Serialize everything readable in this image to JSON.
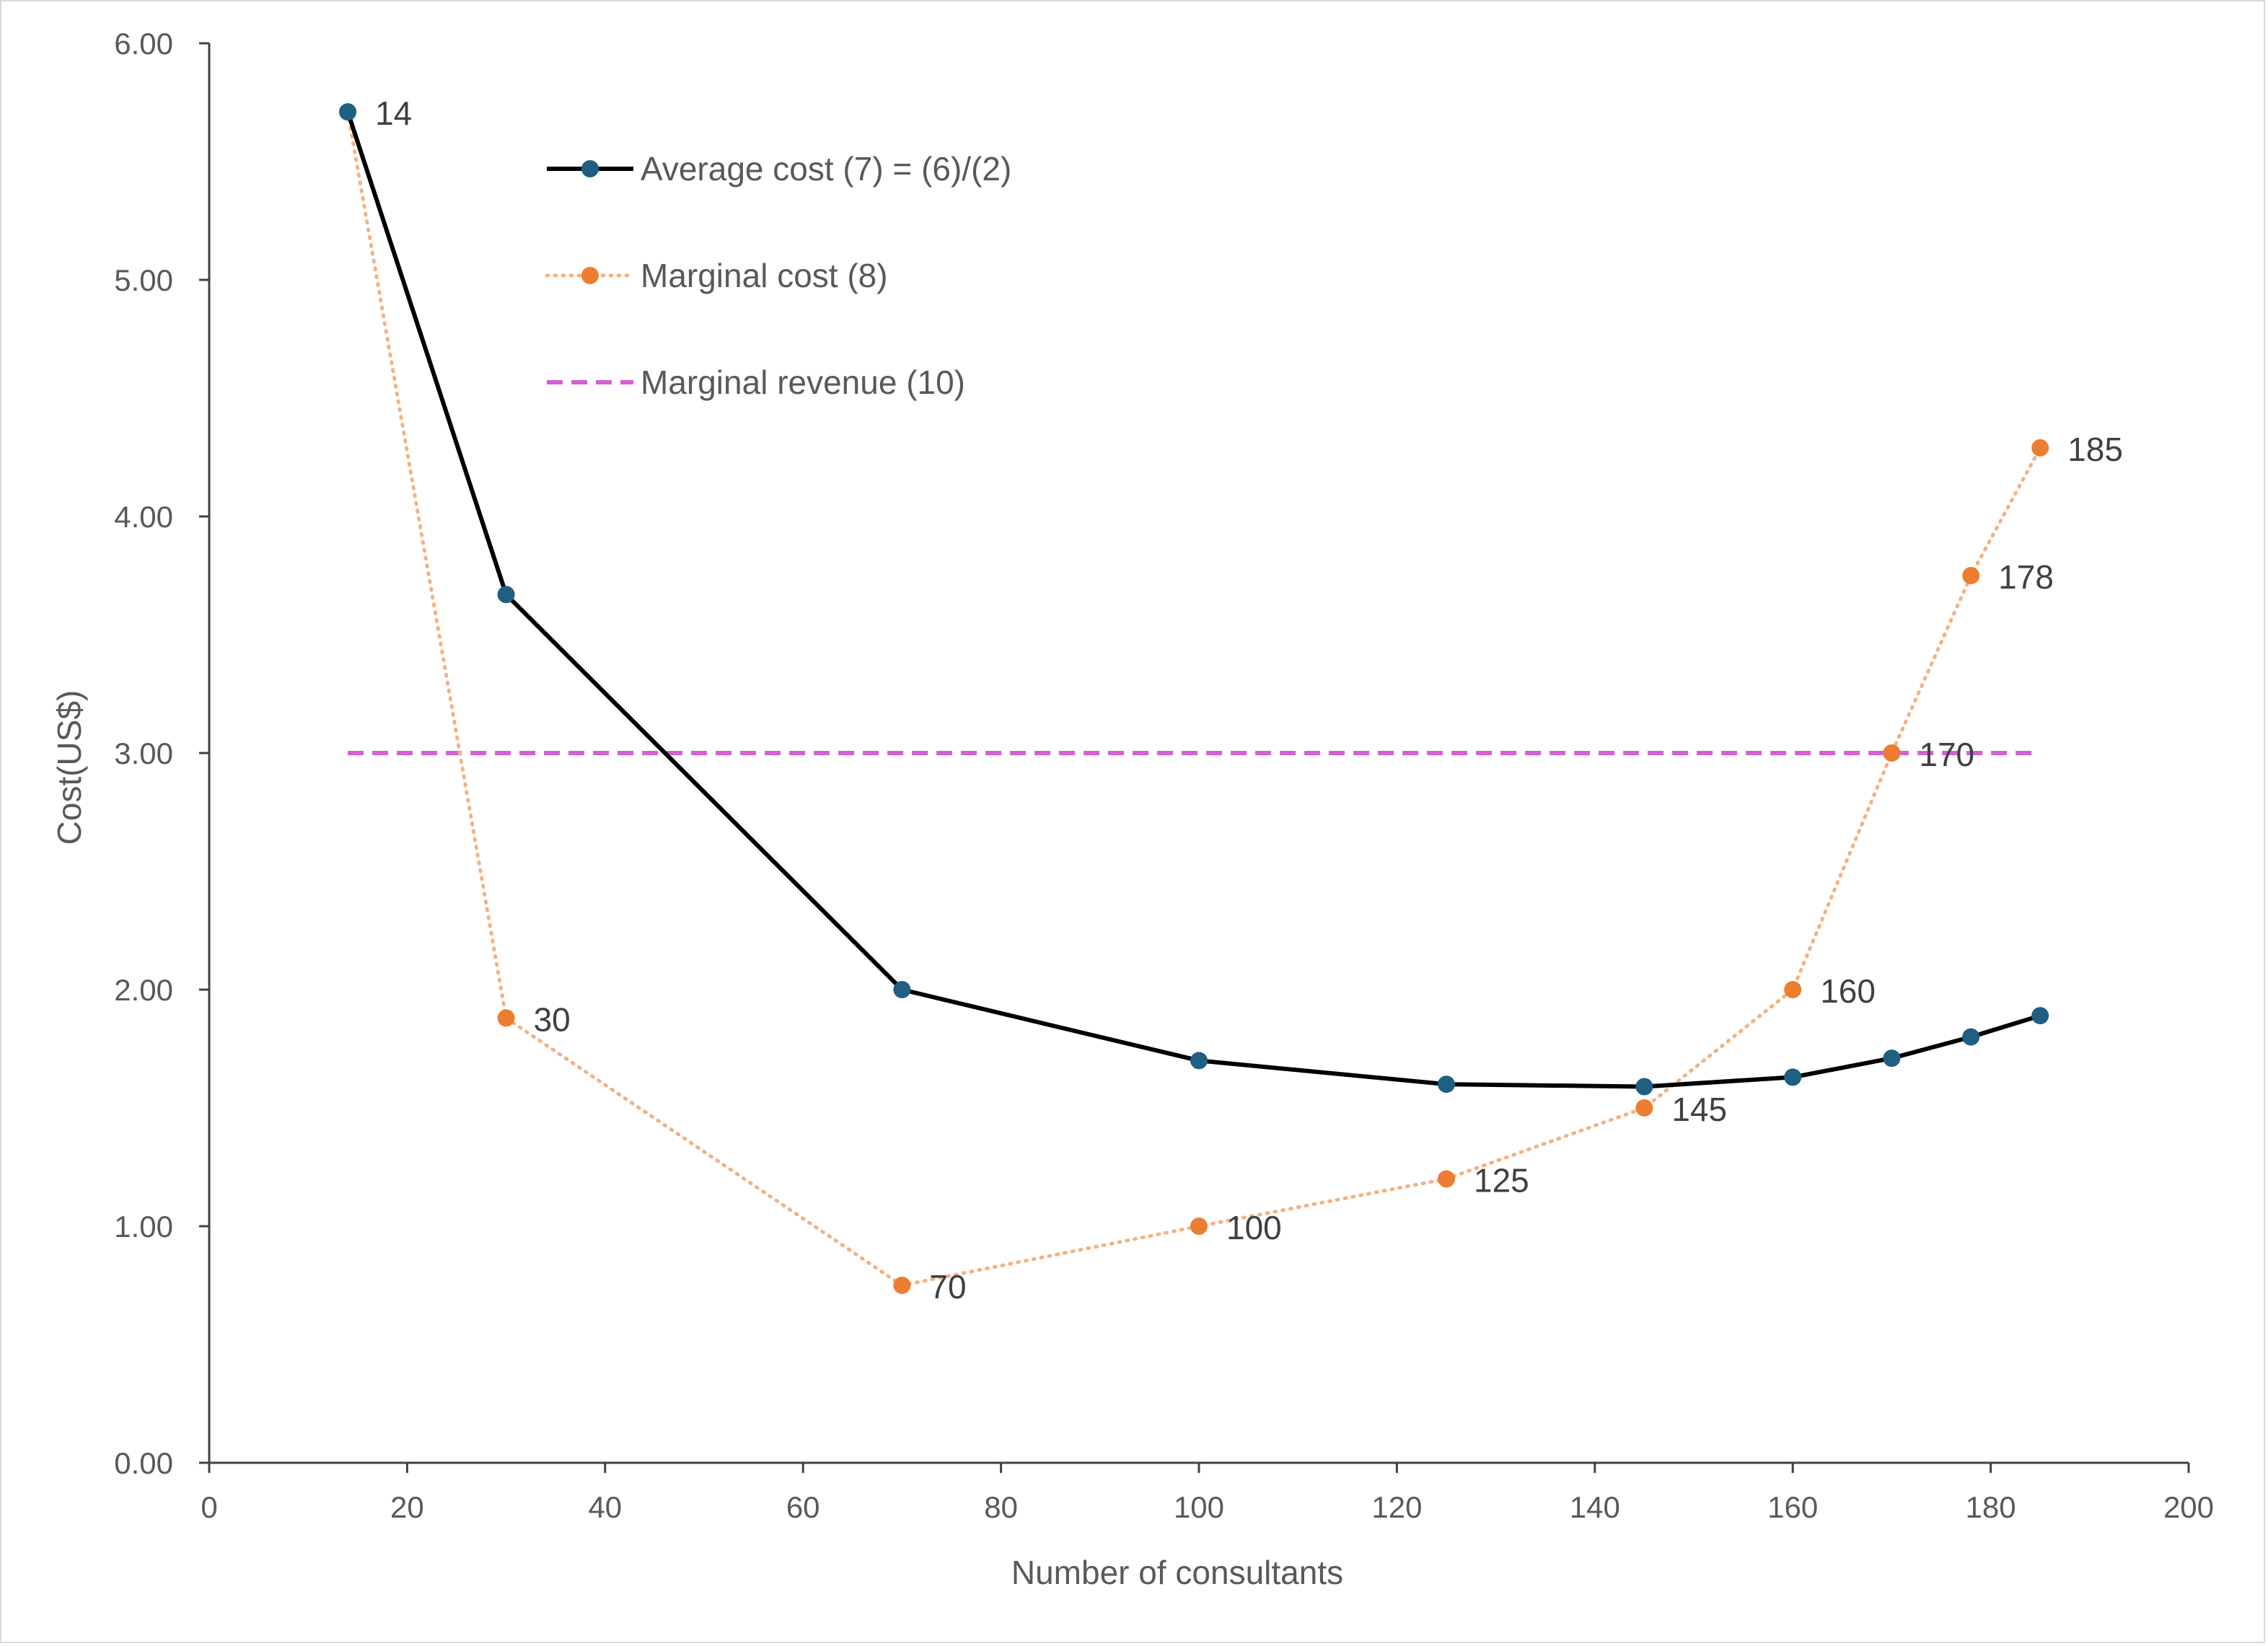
{
  "chart_data": {
    "type": "line",
    "title": "",
    "xlabel": "Number of consultants",
    "ylabel": "Cost(US$)",
    "xlim": [
      0,
      200
    ],
    "ylim": [
      0,
      6
    ],
    "x_ticks": [
      "0",
      "20",
      "40",
      "60",
      "80",
      "100",
      "120",
      "140",
      "160",
      "180",
      "200"
    ],
    "y_ticks": [
      "0.00",
      "1.00",
      "2.00",
      "3.00",
      "4.00",
      "5.00",
      "6.00"
    ],
    "grid": false,
    "legend_position": "top-left",
    "series": [
      {
        "name": "Average cost (7) = (6)/(2)",
        "color": "#000000",
        "marker_color": "#1f5f82",
        "line_style": "solid",
        "points": [
          {
            "x": 14,
            "y": 5.71
          },
          {
            "x": 30,
            "y": 3.67
          },
          {
            "x": 70,
            "y": 2.0
          },
          {
            "x": 100,
            "y": 1.7
          },
          {
            "x": 125,
            "y": 1.6
          },
          {
            "x": 145,
            "y": 1.59
          },
          {
            "x": 160,
            "y": 1.63
          },
          {
            "x": 170,
            "y": 1.71
          },
          {
            "x": 178,
            "y": 1.8
          },
          {
            "x": 185,
            "y": 1.89
          }
        ]
      },
      {
        "name": "Marginal cost (8)",
        "color": "#f4b183",
        "marker_color": "#ed7d31",
        "line_style": "dotted",
        "points": [
          {
            "x": 14,
            "y": 5.71,
            "label": "14"
          },
          {
            "x": 30,
            "y": 1.88,
            "label": "30"
          },
          {
            "x": 70,
            "y": 0.75,
            "label": "70"
          },
          {
            "x": 100,
            "y": 1.0,
            "label": "100"
          },
          {
            "x": 125,
            "y": 1.2,
            "label": "125"
          },
          {
            "x": 145,
            "y": 1.5,
            "label": "145"
          },
          {
            "x": 160,
            "y": 2.0,
            "label": "160"
          },
          {
            "x": 170,
            "y": 3.0,
            "label": "170"
          },
          {
            "x": 178,
            "y": 3.75,
            "label": "178"
          },
          {
            "x": 185,
            "y": 4.29,
            "label": "185"
          }
        ]
      },
      {
        "name": "Marginal revenue (10)",
        "color": "#d45fd4",
        "line_style": "dashed",
        "points": [
          {
            "x": 14,
            "y": 3.0
          },
          {
            "x": 185,
            "y": 3.0
          }
        ]
      }
    ]
  }
}
